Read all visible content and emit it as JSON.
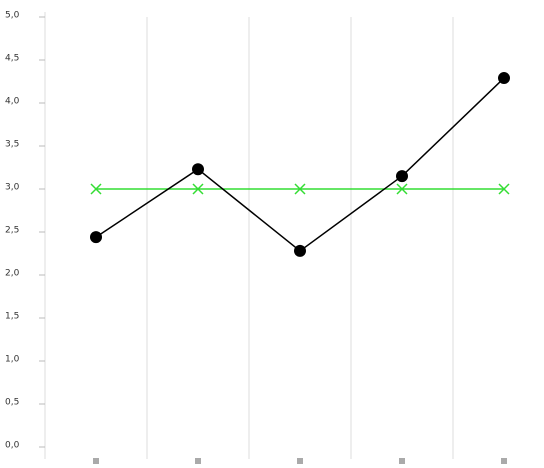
{
  "chart_data": {
    "type": "line",
    "categories": [
      null,
      null,
      null,
      null,
      null
    ],
    "series": [
      {
        "color": "#000000",
        "marker": "circle",
        "values": [
          2.44,
          3.23,
          2.28,
          3.15,
          4.29
        ]
      },
      {
        "color": "#33dd33",
        "marker": "x",
        "values": [
          3.0,
          3.0,
          3.0,
          3.0,
          3.0
        ]
      }
    ],
    "ylim": [
      0,
      5
    ],
    "yticks": [
      {
        "value": 0,
        "label": "0,0"
      },
      {
        "value": 0.5,
        "label": "0,5"
      },
      {
        "value": 1,
        "label": "1,0"
      },
      {
        "value": 1.5,
        "label": "1,5"
      },
      {
        "value": 2,
        "label": "2,0"
      },
      {
        "value": 2.5,
        "label": "2,5"
      },
      {
        "value": 3,
        "label": "3,0"
      },
      {
        "value": 3.5,
        "label": "3,5"
      },
      {
        "value": 4,
        "label": "4,0"
      },
      {
        "value": 4.5,
        "label": "4,5"
      },
      {
        "value": 5,
        "label": "5,0"
      }
    ],
    "xgrid": true
  }
}
